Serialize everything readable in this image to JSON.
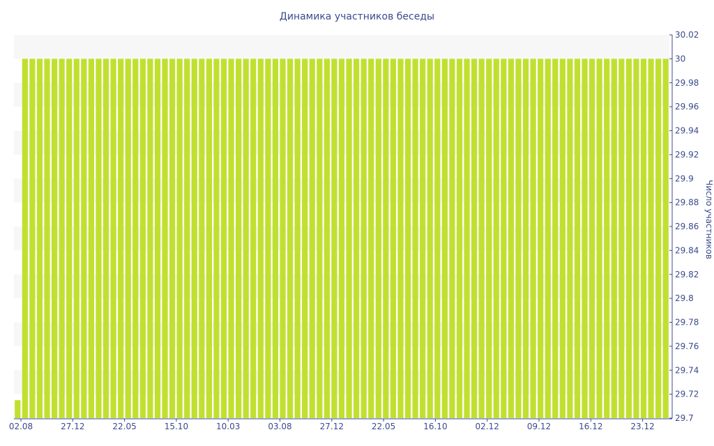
{
  "chart_data": {
    "type": "bar",
    "title": "Динамика участников беседы",
    "xlabel": "",
    "ylabel": "Число участников",
    "y_axis_side": "right",
    "ylim": [
      29.7,
      30.02
    ],
    "yticks": [
      29.7,
      29.72,
      29.74,
      29.76,
      29.78,
      29.8,
      29.82,
      29.84,
      29.86,
      29.88,
      29.9,
      29.92,
      29.94,
      29.96,
      29.98,
      30,
      30.02
    ],
    "x_tick_labels": [
      "02.08",
      "27.12",
      "22.05",
      "15.10",
      "10.03",
      "03.08",
      "27.12",
      "22.05",
      "16.10",
      "02.12",
      "09.12",
      "16.12",
      "23.12"
    ],
    "values": [
      29.715,
      30,
      30,
      30,
      30,
      30,
      30,
      30,
      30,
      30,
      30,
      30,
      30,
      30,
      30,
      30,
      30,
      30,
      30,
      30,
      30,
      30,
      30,
      30,
      30,
      30,
      30,
      30,
      30,
      30,
      30,
      30,
      30,
      30,
      30,
      30,
      30,
      30,
      30,
      30,
      30,
      30,
      30,
      30,
      30,
      30,
      30,
      30,
      30,
      30,
      30,
      30,
      30,
      30,
      30,
      30,
      30,
      30,
      30,
      30,
      30,
      30,
      30,
      30,
      30,
      30,
      30,
      30,
      30,
      30,
      30,
      30,
      30,
      30,
      30,
      30,
      30,
      30,
      30,
      30,
      30,
      30,
      30,
      30,
      30,
      30,
      30,
      30,
      30
    ],
    "grid": "horizontal alternating bands",
    "legend": "none",
    "colors": {
      "bar": "#c0e030",
      "band": "#f7f7f7",
      "text": "#3a4a8c",
      "axis": "#3a4a8c"
    }
  }
}
